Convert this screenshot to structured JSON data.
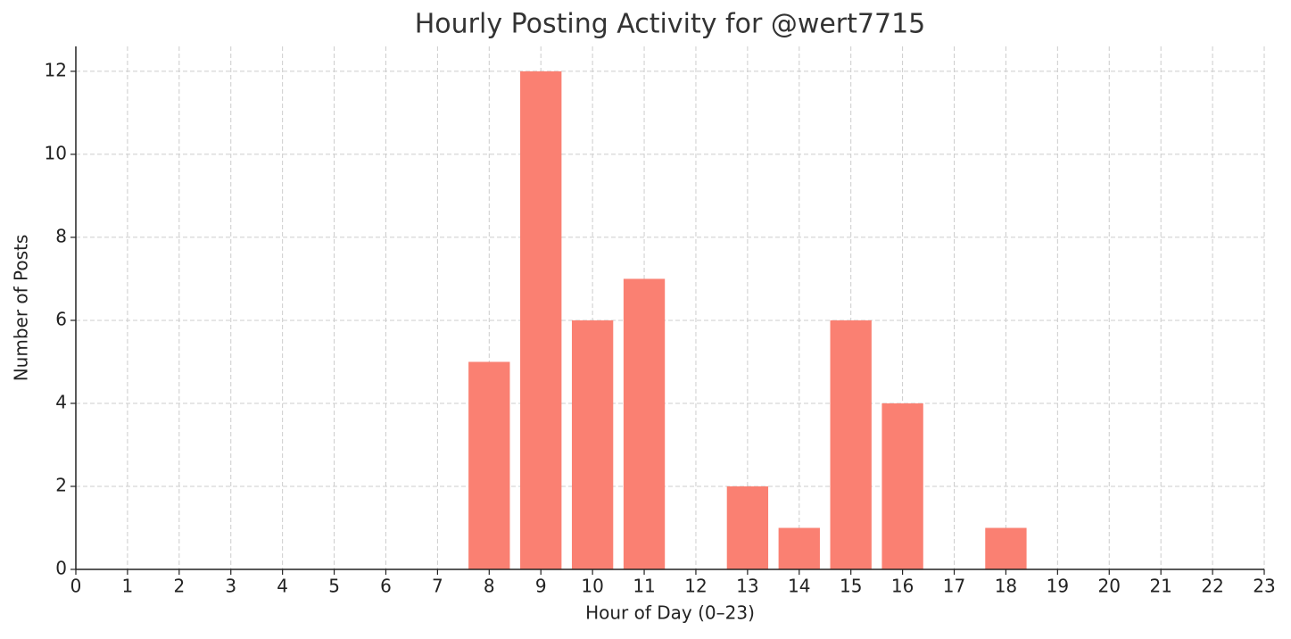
{
  "chart_data": {
    "type": "bar",
    "title": "Hourly Posting Activity for @wert7715",
    "x_label": "Hour of Day (0–23)",
    "y_label": "Number of Posts",
    "x": [
      8,
      9,
      10,
      11,
      13,
      14,
      15,
      16,
      18
    ],
    "values": [
      5,
      12,
      6,
      7,
      2,
      1,
      6,
      4,
      1
    ],
    "color": "#fa8072",
    "xlim": [
      0,
      23
    ],
    "xticks": [
      0,
      1,
      2,
      3,
      4,
      5,
      6,
      7,
      8,
      9,
      10,
      11,
      12,
      13,
      14,
      15,
      16,
      17,
      18,
      19,
      20,
      21,
      22,
      23
    ],
    "ylim": [
      0,
      12.6
    ],
    "yticks": [
      0,
      2,
      4,
      6,
      8,
      10,
      12
    ],
    "grid": true
  }
}
